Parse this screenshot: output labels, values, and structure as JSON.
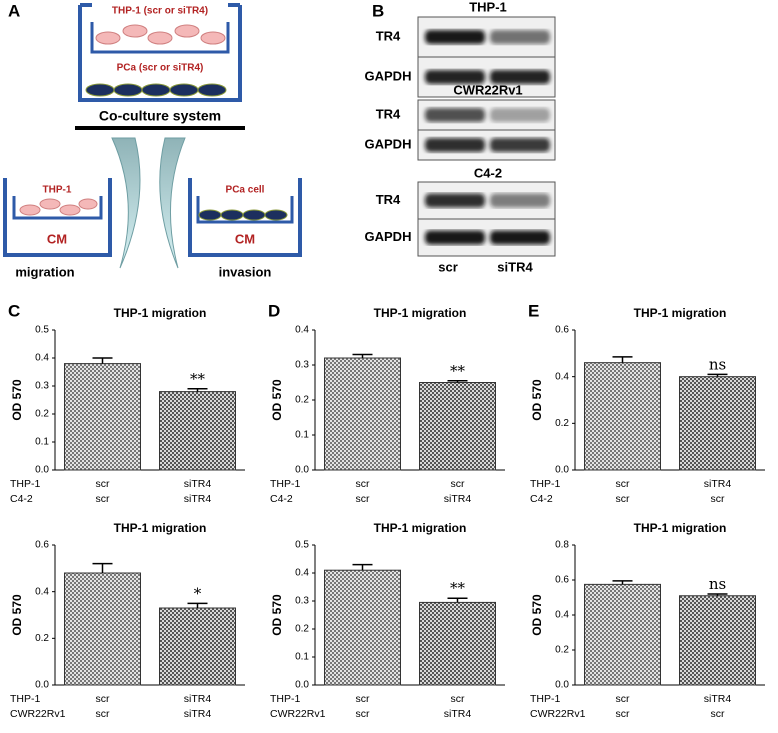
{
  "panel_labels": [
    "A",
    "B",
    "C",
    "D",
    "E"
  ],
  "diagram": {
    "top_dish_cells": "THP-1 (scr or siTR4)",
    "top_dish_base": "PCa (scr or siTR4)",
    "system": "Co-culture system",
    "left_cells": "THP-1",
    "left_medium": "CM",
    "left_assay": "migration",
    "right_cells": "PCa cell",
    "right_medium": "CM",
    "right_assay": "invasion"
  },
  "blot": {
    "groups": [
      {
        "title": "THP-1",
        "rows": [
          "TR4",
          "GAPDH"
        ]
      },
      {
        "title": "CWR22Rv1",
        "rows": [
          "TR4",
          "GAPDH"
        ]
      },
      {
        "title": "C4-2",
        "rows": [
          "TR4",
          "GAPDH"
        ]
      }
    ],
    "lanes": [
      "scr",
      "siTR4"
    ]
  },
  "chart_data": [
    {
      "type": "bar",
      "title": "THP-1 migration",
      "ylabel": "OD 570",
      "group_labels": [
        "THP-1",
        "C4-2"
      ],
      "categories": [
        [
          "scr",
          "scr"
        ],
        [
          "siTR4",
          "siTR4"
        ]
      ],
      "values": [
        0.38,
        0.28
      ],
      "errors": [
        0.02,
        0.01
      ],
      "annotation": "**",
      "ylim": [
        0,
        0.5
      ],
      "yticks": [
        {
          "value": 0,
          "label": "0.0"
        },
        0.1,
        0.2,
        0.3,
        0.4,
        0.5
      ]
    },
    {
      "type": "bar",
      "title": "THP-1 migration",
      "ylabel": "OD 570",
      "group_labels": [
        "THP-1",
        "CWR22Rv1"
      ],
      "categories": [
        [
          "scr",
          "scr"
        ],
        [
          "siTR4",
          "siTR4"
        ]
      ],
      "values": [
        0.48,
        0.33
      ],
      "errors": [
        0.04,
        0.02
      ],
      "annotation": "*",
      "ylim": [
        0,
        0.6
      ],
      "yticks": [
        {
          "value": 0,
          "label": "0.0"
        },
        0.2,
        0.4,
        0.6
      ]
    },
    {
      "type": "bar",
      "title": "THP-1 migration",
      "ylabel": "OD 570",
      "group_labels": [
        "THP-1",
        "C4-2"
      ],
      "categories": [
        [
          "scr",
          "scr"
        ],
        [
          "scr",
          "siTR4"
        ]
      ],
      "values": [
        0.32,
        0.25
      ],
      "errors": [
        0.01,
        0.005
      ],
      "annotation": "**",
      "ylim": [
        0,
        0.4
      ],
      "yticks": [
        {
          "value": 0,
          "label": "0.0"
        },
        0.1,
        0.2,
        0.3,
        0.4
      ]
    },
    {
      "type": "bar",
      "title": "THP-1 migration",
      "ylabel": "OD 570",
      "group_labels": [
        "THP-1",
        "CWR22Rv1"
      ],
      "categories": [
        [
          "scr",
          "scr"
        ],
        [
          "scr",
          "siTR4"
        ]
      ],
      "values": [
        0.41,
        0.295
      ],
      "errors": [
        0.02,
        0.015
      ],
      "annotation": "**",
      "ylim": [
        0,
        0.5
      ],
      "yticks": [
        {
          "value": 0,
          "label": "0.0"
        },
        0.1,
        0.2,
        0.3,
        0.4,
        0.5
      ]
    },
    {
      "type": "bar",
      "title": "THP-1 migration",
      "ylabel": "OD 570",
      "group_labels": [
        "THP-1",
        "C4-2"
      ],
      "categories": [
        [
          "scr",
          "scr"
        ],
        [
          "siTR4",
          "scr"
        ]
      ],
      "values": [
        0.46,
        0.4
      ],
      "errors": [
        0.025,
        0.01
      ],
      "annotation": "ns",
      "ylim": [
        0,
        0.6
      ],
      "yticks": [
        {
          "value": 0,
          "label": "0.0"
        },
        0.2,
        0.4,
        0.6
      ]
    },
    {
      "type": "bar",
      "title": "THP-1 migration",
      "ylabel": "OD 570",
      "group_labels": [
        "THP-1",
        "CWR22Rv1"
      ],
      "categories": [
        [
          "scr",
          "scr"
        ],
        [
          "siTR4",
          "scr"
        ]
      ],
      "values": [
        0.575,
        0.51
      ],
      "errors": [
        0.02,
        0.01
      ],
      "annotation": "ns",
      "ylim": [
        0,
        0.8
      ],
      "yticks": [
        {
          "value": 0,
          "label": "0.0"
        },
        0.2,
        0.4,
        0.6,
        0.8
      ]
    }
  ]
}
